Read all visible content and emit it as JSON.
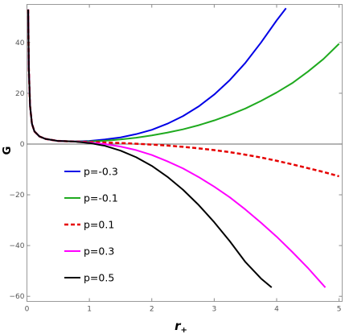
{
  "chart_data": {
    "type": "line",
    "xlabel": "r",
    "xlabel_sub": "+",
    "ylabel": "G",
    "xlim": [
      0,
      5.05
    ],
    "ylim": [
      -62,
      55
    ],
    "x_ticks": [
      0,
      1,
      2,
      3,
      4,
      5
    ],
    "y_ticks": [
      -60,
      -40,
      -20,
      0,
      20,
      40
    ],
    "grid": false,
    "frame": true,
    "zero_line": true,
    "legend_position": "bottom-left",
    "series": [
      {
        "name": "p=-0.3",
        "color": "#0000e6",
        "dash": false,
        "x": [
          0.02,
          0.03,
          0.05,
          0.08,
          0.12,
          0.2,
          0.3,
          0.5,
          0.75,
          1.0,
          1.25,
          1.5,
          1.75,
          2.0,
          2.25,
          2.5,
          2.75,
          3.0,
          3.25,
          3.5,
          3.75,
          4.0,
          4.15
        ],
        "y": [
          53,
          30,
          15,
          8,
          5,
          3,
          2,
          1.2,
          1.0,
          1.2,
          1.8,
          2.6,
          3.9,
          5.6,
          8.0,
          11.0,
          14.8,
          19.5,
          25.2,
          32.0,
          40.0,
          48.7,
          53.5
        ]
      },
      {
        "name": "p=-0.1",
        "color": "#1faa1f",
        "dash": false,
        "x": [
          0.02,
          0.03,
          0.05,
          0.08,
          0.12,
          0.2,
          0.3,
          0.5,
          0.75,
          1.0,
          1.25,
          1.5,
          1.75,
          2.0,
          2.25,
          2.5,
          2.75,
          3.0,
          3.25,
          3.5,
          3.75,
          4.0,
          4.25,
          4.5,
          4.75,
          5.0
        ],
        "y": [
          53,
          30,
          15,
          8,
          5,
          3,
          2,
          1.2,
          1.0,
          1.0,
          1.3,
          1.8,
          2.5,
          3.4,
          4.5,
          5.8,
          7.4,
          9.3,
          11.5,
          14.0,
          17.0,
          20.3,
          24.0,
          28.5,
          33.5,
          39.5
        ]
      },
      {
        "name": "p=0.1",
        "color": "#e60000",
        "dash": true,
        "x": [
          0.02,
          0.03,
          0.05,
          0.08,
          0.12,
          0.2,
          0.3,
          0.5,
          0.75,
          1.0,
          1.25,
          1.5,
          1.75,
          2.0,
          2.25,
          2.5,
          2.75,
          3.0,
          3.25,
          3.5,
          3.75,
          4.0,
          4.25,
          4.5,
          4.75,
          5.0
        ],
        "y": [
          53,
          30,
          15,
          8,
          5,
          3,
          2,
          1.2,
          1.0,
          0.8,
          0.6,
          0.4,
          0.1,
          -0.2,
          -0.6,
          -1.1,
          -1.7,
          -2.4,
          -3.2,
          -4.2,
          -5.3,
          -6.6,
          -8.0,
          -9.5,
          -11.0,
          -12.7
        ]
      },
      {
        "name": "p=0.3",
        "color": "#ff00ff",
        "dash": false,
        "x": [
          0.02,
          0.03,
          0.05,
          0.08,
          0.12,
          0.2,
          0.3,
          0.5,
          0.75,
          1.0,
          1.25,
          1.5,
          1.75,
          2.0,
          2.25,
          2.5,
          2.75,
          3.0,
          3.25,
          3.5,
          3.75,
          4.0,
          4.25,
          4.5,
          4.78
        ],
        "y": [
          53,
          30,
          15,
          8,
          5,
          3,
          2,
          1.2,
          1.0,
          0.6,
          0.0,
          -1.0,
          -2.4,
          -4.3,
          -6.8,
          -9.6,
          -13.0,
          -16.8,
          -21.0,
          -25.8,
          -31.0,
          -36.5,
          -42.5,
          -48.8,
          -56.5
        ]
      },
      {
        "name": "p=0.5",
        "color": "#000000",
        "dash": false,
        "x": [
          0.02,
          0.03,
          0.05,
          0.08,
          0.12,
          0.2,
          0.3,
          0.5,
          0.75,
          1.0,
          1.25,
          1.5,
          1.75,
          2.0,
          2.25,
          2.5,
          2.75,
          3.0,
          3.25,
          3.5,
          3.75,
          3.92
        ],
        "y": [
          53,
          30,
          15,
          8,
          5,
          3,
          2,
          1.2,
          1.0,
          0.4,
          -0.7,
          -2.6,
          -5.2,
          -8.6,
          -12.9,
          -18.0,
          -24.0,
          -30.8,
          -38.3,
          -46.5,
          -53.0,
          -56.5
        ]
      }
    ]
  }
}
